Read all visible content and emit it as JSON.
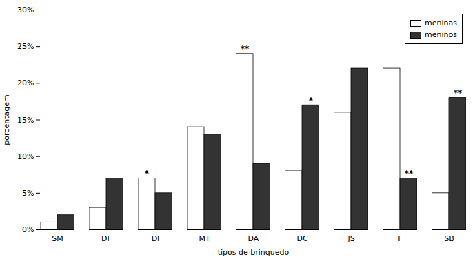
{
  "chart_data": {
    "type": "bar",
    "categories": [
      "SM",
      "DF",
      "DI",
      "MT",
      "DA",
      "DC",
      "JS",
      "F",
      "SB"
    ],
    "series": [
      {
        "name": "meninas",
        "color": "#ffffff",
        "values": [
          1,
          3,
          7,
          14,
          24,
          8,
          16,
          22,
          5
        ]
      },
      {
        "name": "meninos",
        "color": "#333333",
        "values": [
          2,
          7,
          5,
          13,
          9,
          17,
          22,
          7,
          18
        ]
      }
    ],
    "annotations": [
      {
        "category": "DI",
        "series": "meninas",
        "text": "*"
      },
      {
        "category": "DA",
        "series": "meninas",
        "text": "**"
      },
      {
        "category": "DC",
        "series": "meninos",
        "text": "*"
      },
      {
        "category": "F",
        "series": "meninos",
        "text": "**"
      },
      {
        "category": "SB",
        "series": "meninos",
        "text": "**"
      }
    ],
    "xlabel": "tipos de brinquedo",
    "ylabel": "porcentagem",
    "ylim": [
      0,
      30
    ],
    "yticks": [
      {
        "value": 0,
        "label": "0%"
      },
      {
        "value": 5,
        "label": "5%"
      },
      {
        "value": 10,
        "label": "10%"
      },
      {
        "value": 15,
        "label": "15%"
      },
      {
        "value": 20,
        "label": "20%"
      },
      {
        "value": 25,
        "label": "25%"
      },
      {
        "value": 30,
        "label": "30%"
      }
    ],
    "grid": false,
    "legend": "upper right"
  }
}
